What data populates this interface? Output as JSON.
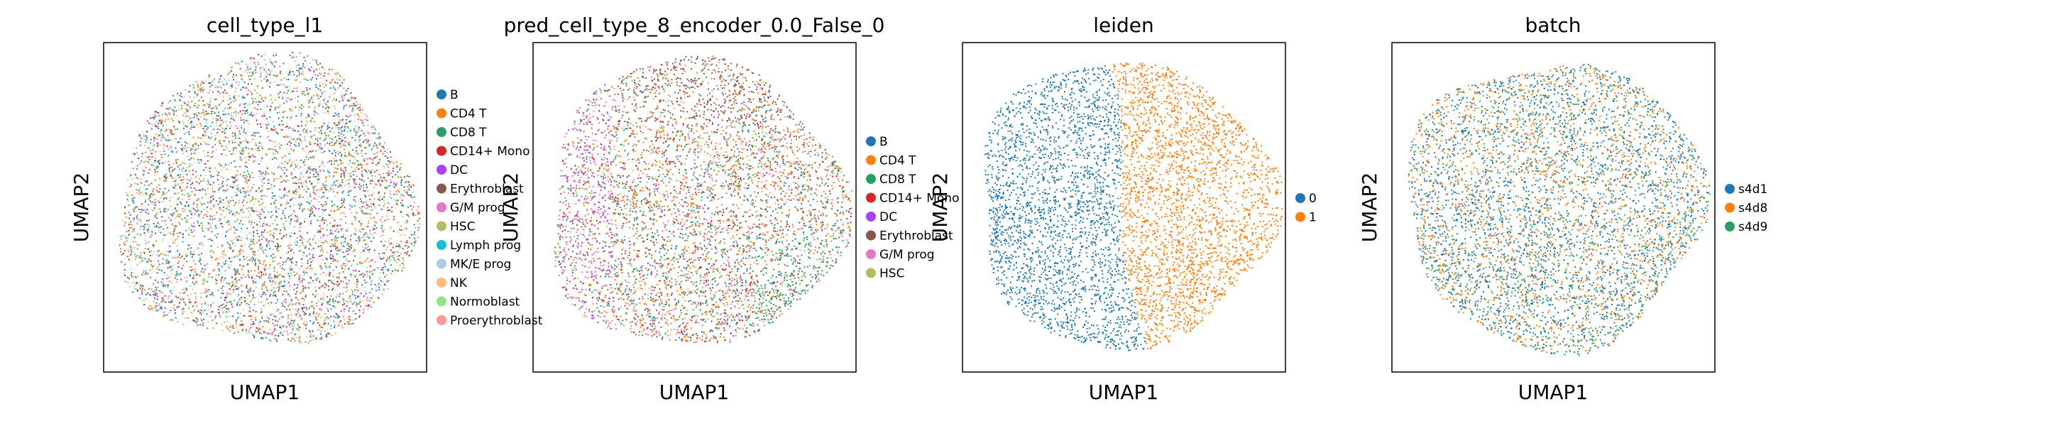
{
  "figure": {
    "panels": [
      {
        "title": "cell_type_l1",
        "xlabel": "UMAP1",
        "ylabel": "UMAP2",
        "legend": [
          {
            "label": "B",
            "color": "#1f77b4"
          },
          {
            "label": "CD4 T",
            "color": "#ff7f0e"
          },
          {
            "label": "CD8 T",
            "color": "#279e68"
          },
          {
            "label": "CD14+ Mono",
            "color": "#d62728"
          },
          {
            "label": "DC",
            "color": "#aa40fc"
          },
          {
            "label": "Erythroblast",
            "color": "#8c564b"
          },
          {
            "label": "G/M prog",
            "color": "#e377c2"
          },
          {
            "label": "HSC",
            "color": "#b5bd61"
          },
          {
            "label": "Lymph prog",
            "color": "#17becf"
          },
          {
            "label": "MK/E prog",
            "color": "#aec7e8"
          },
          {
            "label": "NK",
            "color": "#ffbb78"
          },
          {
            "label": "Normoblast",
            "color": "#98df8a"
          },
          {
            "label": "Proerythroblast",
            "color": "#ff9896"
          }
        ]
      },
      {
        "title": "pred_cell_type_8_encoder_0.0_False_0",
        "xlabel": "UMAP1",
        "ylabel": "UMAP2",
        "legend": [
          {
            "label": "B",
            "color": "#1f77b4"
          },
          {
            "label": "CD4 T",
            "color": "#ff7f0e"
          },
          {
            "label": "CD8 T",
            "color": "#279e68"
          },
          {
            "label": "CD14+ Mono",
            "color": "#d62728"
          },
          {
            "label": "DC",
            "color": "#aa40fc"
          },
          {
            "label": "Erythroblast",
            "color": "#8c564b"
          },
          {
            "label": "G/M prog",
            "color": "#e377c2"
          },
          {
            "label": "HSC",
            "color": "#b5bd61"
          }
        ]
      },
      {
        "title": "leiden",
        "xlabel": "UMAP1",
        "ylabel": "UMAP2",
        "legend": [
          {
            "label": "0",
            "color": "#1f77b4"
          },
          {
            "label": "1",
            "color": "#ff7f0e"
          }
        ]
      },
      {
        "title": "batch",
        "xlabel": "UMAP1",
        "ylabel": "UMAP2",
        "legend": [
          {
            "label": "s4d1",
            "color": "#1f77b4"
          },
          {
            "label": "s4d8",
            "color": "#ff7f0e"
          },
          {
            "label": "s4d9",
            "color": "#279e68"
          }
        ]
      }
    ]
  },
  "chart_data": [
    {
      "type": "scatter",
      "title": "cell_type_l1",
      "xlabel": "UMAP1",
      "ylabel": "UMAP2",
      "grid": false,
      "legend_position": "right",
      "categories": [
        "B",
        "CD4 T",
        "CD8 T",
        "CD14+ Mono",
        "DC",
        "Erythroblast",
        "G/M prog",
        "HSC",
        "Lymph prog",
        "MK/E prog",
        "NK",
        "Normoblast",
        "Proerythroblast"
      ]
    },
    {
      "type": "scatter",
      "title": "pred_cell_type_8_encoder_0.0_False_0",
      "xlabel": "UMAP1",
      "ylabel": "UMAP2",
      "grid": false,
      "legend_position": "right",
      "categories": [
        "B",
        "CD4 T",
        "CD8 T",
        "CD14+ Mono",
        "DC",
        "Erythroblast",
        "G/M prog",
        "HSC"
      ]
    },
    {
      "type": "scatter",
      "title": "leiden",
      "xlabel": "UMAP1",
      "ylabel": "UMAP2",
      "grid": false,
      "legend_position": "right",
      "categories": [
        "0",
        "1"
      ]
    },
    {
      "type": "scatter",
      "title": "batch",
      "xlabel": "UMAP1",
      "ylabel": "UMAP2",
      "grid": false,
      "legend_position": "right",
      "categories": [
        "s4d1",
        "s4d8",
        "s4d9"
      ]
    }
  ]
}
